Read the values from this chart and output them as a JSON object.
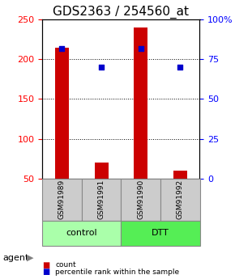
{
  "title": "GDS2363 / 254560_at",
  "samples": [
    "GSM91989",
    "GSM91991",
    "GSM91990",
    "GSM91992"
  ],
  "counts": [
    215,
    70,
    240,
    60
  ],
  "percentiles": [
    82,
    70,
    82,
    70
  ],
  "ylim_left": [
    50,
    250
  ],
  "ylim_right": [
    0,
    100
  ],
  "yticks_left": [
    50,
    100,
    150,
    200,
    250
  ],
  "yticks_right": [
    0,
    25,
    50,
    75,
    100
  ],
  "groups": [
    "control",
    "control",
    "DTT",
    "DTT"
  ],
  "group_labels": [
    "control",
    "DTT"
  ],
  "group_colors": [
    "#aaffaa",
    "#55dd55"
  ],
  "bar_color": "#cc0000",
  "dot_color": "#0000cc",
  "bar_width": 0.35,
  "agent_label": "agent",
  "legend_count": "count",
  "legend_pct": "percentile rank within the sample",
  "title_fontsize": 11,
  "tick_fontsize": 8,
  "label_fontsize": 8,
  "sample_box_color": "#cccccc",
  "sample_box_edge": "#888888"
}
